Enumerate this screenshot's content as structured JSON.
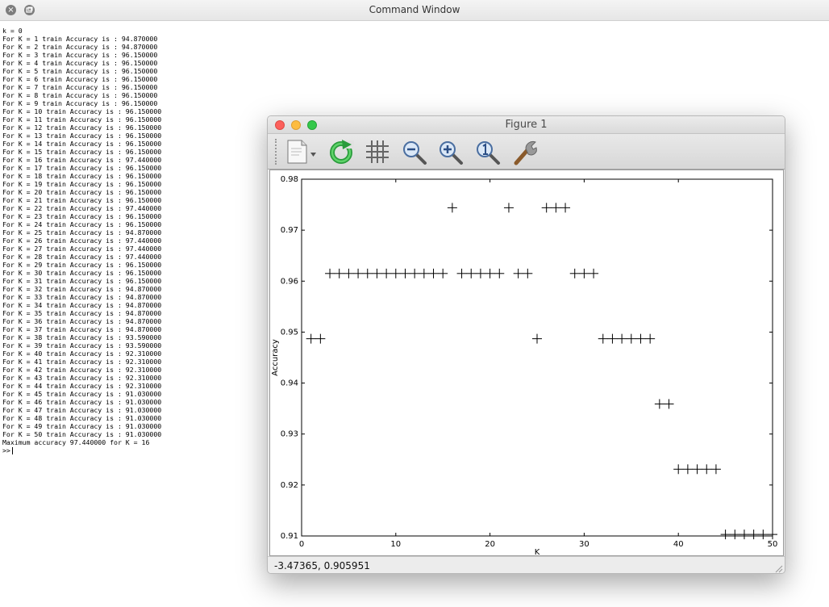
{
  "window": {
    "title": "Command Window",
    "close_icon": "close-icon",
    "restore_icon": "restore-icon"
  },
  "console": {
    "lines": [
      "k = 0",
      "For K = 1 train Accuracy is : 94.870000",
      "For K = 2 train Accuracy is : 94.870000",
      "For K = 3 train Accuracy is : 96.150000",
      "For K = 4 train Accuracy is : 96.150000",
      "For K = 5 train Accuracy is : 96.150000",
      "For K = 6 train Accuracy is : 96.150000",
      "For K = 7 train Accuracy is : 96.150000",
      "For K = 8 train Accuracy is : 96.150000",
      "For K = 9 train Accuracy is : 96.150000",
      "For K = 10 train Accuracy is : 96.150000",
      "For K = 11 train Accuracy is : 96.150000",
      "For K = 12 train Accuracy is : 96.150000",
      "For K = 13 train Accuracy is : 96.150000",
      "For K = 14 train Accuracy is : 96.150000",
      "For K = 15 train Accuracy is : 96.150000",
      "For K = 16 train Accuracy is : 97.440000",
      "For K = 17 train Accuracy is : 96.150000",
      "For K = 18 train Accuracy is : 96.150000",
      "For K = 19 train Accuracy is : 96.150000",
      "For K = 20 train Accuracy is : 96.150000",
      "For K = 21 train Accuracy is : 96.150000",
      "For K = 22 train Accuracy is : 97.440000",
      "For K = 23 train Accuracy is : 96.150000",
      "For K = 24 train Accuracy is : 96.150000",
      "For K = 25 train Accuracy is : 94.870000",
      "For K = 26 train Accuracy is : 97.440000",
      "For K = 27 train Accuracy is : 97.440000",
      "For K = 28 train Accuracy is : 97.440000",
      "For K = 29 train Accuracy is : 96.150000",
      "For K = 30 train Accuracy is : 96.150000",
      "For K = 31 train Accuracy is : 96.150000",
      "For K = 32 train Accuracy is : 94.870000",
      "For K = 33 train Accuracy is : 94.870000",
      "For K = 34 train Accuracy is : 94.870000",
      "For K = 35 train Accuracy is : 94.870000",
      "For K = 36 train Accuracy is : 94.870000",
      "For K = 37 train Accuracy is : 94.870000",
      "For K = 38 train Accuracy is : 93.590000",
      "For K = 39 train Accuracy is : 93.590000",
      "For K = 40 train Accuracy is : 92.310000",
      "For K = 41 train Accuracy is : 92.310000",
      "For K = 42 train Accuracy is : 92.310000",
      "For K = 43 train Accuracy is : 92.310000",
      "For K = 44 train Accuracy is : 92.310000",
      "For K = 45 train Accuracy is : 91.030000",
      "For K = 46 train Accuracy is : 91.030000",
      "For K = 47 train Accuracy is : 91.030000",
      "For K = 48 train Accuracy is : 91.030000",
      "For K = 49 train Accuracy is : 91.030000",
      "For K = 50 train Accuracy is : 91.030000",
      "Maximum accuracy 97.440000 for K = 16"
    ],
    "prompt": ">>"
  },
  "figure": {
    "title": "Figure 1",
    "toolbar": [
      {
        "name": "new-document-icon"
      },
      {
        "name": "refresh-icon"
      },
      {
        "name": "grid-icon"
      },
      {
        "name": "zoom-out-icon"
      },
      {
        "name": "zoom-in-icon"
      },
      {
        "name": "zoom-reset-icon"
      },
      {
        "name": "settings-wrench-icon"
      }
    ],
    "status": "-3.47365,  0.905951"
  },
  "chart_data": {
    "type": "scatter",
    "marker": "+",
    "xlabel": "K",
    "ylabel": "Accuracy",
    "xlim": [
      0,
      50
    ],
    "ylim": [
      0.91,
      0.98
    ],
    "xticks": [
      0,
      10,
      20,
      30,
      40,
      50
    ],
    "yticks": [
      0.91,
      0.92,
      0.93,
      0.94,
      0.95,
      0.96,
      0.97,
      0.98
    ],
    "x": [
      1,
      2,
      3,
      4,
      5,
      6,
      7,
      8,
      9,
      10,
      11,
      12,
      13,
      14,
      15,
      16,
      17,
      18,
      19,
      20,
      21,
      22,
      23,
      24,
      25,
      26,
      27,
      28,
      29,
      30,
      31,
      32,
      33,
      34,
      35,
      36,
      37,
      38,
      39,
      40,
      41,
      42,
      43,
      44,
      45,
      46,
      47,
      48,
      49,
      50
    ],
    "y": [
      0.9487,
      0.9487,
      0.9615,
      0.9615,
      0.9615,
      0.9615,
      0.9615,
      0.9615,
      0.9615,
      0.9615,
      0.9615,
      0.9615,
      0.9615,
      0.9615,
      0.9615,
      0.9744,
      0.9615,
      0.9615,
      0.9615,
      0.9615,
      0.9615,
      0.9744,
      0.9615,
      0.9615,
      0.9487,
      0.9744,
      0.9744,
      0.9744,
      0.9615,
      0.9615,
      0.9615,
      0.9487,
      0.9487,
      0.9487,
      0.9487,
      0.9487,
      0.9487,
      0.9359,
      0.9359,
      0.9231,
      0.9231,
      0.9231,
      0.9231,
      0.9231,
      0.9103,
      0.9103,
      0.9103,
      0.9103,
      0.9103,
      0.9103
    ],
    "grid": false
  }
}
